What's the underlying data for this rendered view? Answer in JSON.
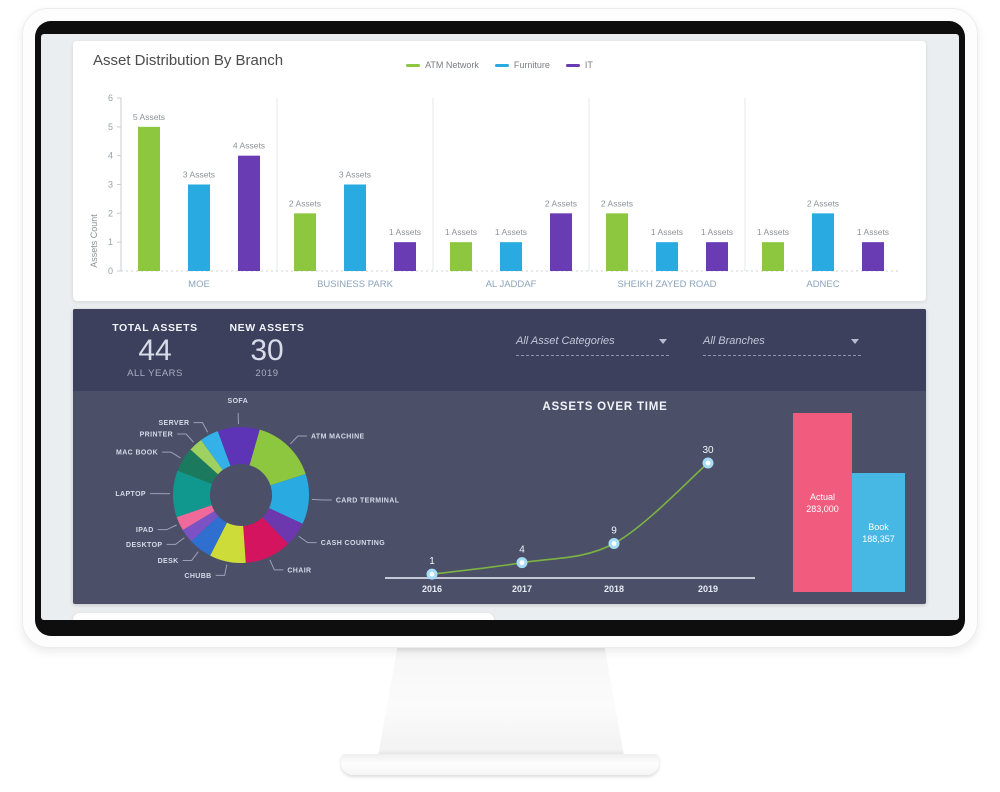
{
  "summary": {
    "total": {
      "label": "TOTAL ASSETS",
      "value": "44",
      "sub": "ALL YEARS"
    },
    "new": {
      "label": "NEW ASSETS",
      "value": "30",
      "sub": "2019"
    }
  },
  "filters": {
    "categories": {
      "value": "All Asset Categories"
    },
    "branches": {
      "value": "All Branches"
    }
  },
  "colors": {
    "panel_dark": "#3c405c",
    "panel_light": "#4b5068",
    "atm_green": "#8dc63f",
    "furniture_blue": "#29abe2",
    "it_purple": "#6a3cb4"
  },
  "chart_data": [
    {
      "id": "branch_bar",
      "type": "bar",
      "title": "Asset Distribution By Branch",
      "ylabel": "Assets Count",
      "ylim": [
        0,
        6
      ],
      "yticks": [
        0,
        1,
        2,
        3,
        4,
        5,
        6
      ],
      "data_label_suffix": " Assets",
      "legend_position": "top-center",
      "categories": [
        "MOE",
        "BUSINESS PARK",
        "AL JADDAF",
        "SHEIKH ZAYED ROAD",
        "ADNEC"
      ],
      "series": [
        {
          "name": "ATM Network",
          "color": "#8dc63f",
          "values": [
            5,
            2,
            1,
            2,
            1
          ]
        },
        {
          "name": "Furniture",
          "color": "#29abe2",
          "values": [
            3,
            3,
            1,
            1,
            2
          ]
        },
        {
          "name": "IT",
          "color": "#6a3cb4",
          "values": [
            4,
            1,
            2,
            1,
            1
          ]
        }
      ]
    },
    {
      "id": "asset_type_donut",
      "type": "pie",
      "value_unit": "degrees",
      "start_angle": 340,
      "segments": [
        {
          "label": "SOFA",
          "value": 36,
          "color": "#5c34b5"
        },
        {
          "label": "ATM MACHINE",
          "value": 56,
          "color": "#8dc63f"
        },
        {
          "label": "CARD TERMINAL",
          "value": 43,
          "color": "#29abe2"
        },
        {
          "label": "CASH COUNTING",
          "value": 21,
          "color": "#6d38ad"
        },
        {
          "label": "CHAIR",
          "value": 40,
          "color": "#d4145e"
        },
        {
          "label": "CHUBB",
          "value": 31,
          "color": "#cddc39"
        },
        {
          "label": "DESK",
          "value": 20,
          "color": "#2e6fd0"
        },
        {
          "label": "DESKTOP",
          "value": 12,
          "color": "#7b52c4"
        },
        {
          "label": "IPAD",
          "value": 12,
          "color": "#ef6a9b"
        },
        {
          "label": "LAPTOP",
          "value": 40,
          "color": "#10988f"
        },
        {
          "label": "MAC BOOK",
          "value": 21,
          "color": "#1b7a5d"
        },
        {
          "label": "PRINTER",
          "value": 12,
          "color": "#9ed15f"
        },
        {
          "label": "SERVER",
          "value": 16,
          "color": "#33b1e8"
        }
      ]
    },
    {
      "id": "assets_over_time",
      "type": "line",
      "title": "ASSETS OVER TIME",
      "x": [
        "2016",
        "2017",
        "2018",
        "2019"
      ],
      "values": [
        1,
        4,
        9,
        30
      ],
      "line_color": "#7cb342",
      "marker_color": "#a6dcf6",
      "axis_color": "#c3cad8"
    },
    {
      "id": "actual_vs_book",
      "type": "bar",
      "bars": [
        {
          "label": "Actual",
          "display": "283,000",
          "value": 283000,
          "color": "#f15b7e",
          "width": 59
        },
        {
          "label": "Book",
          "display": "188,357",
          "value": 188357,
          "color": "#47b7e4",
          "width": 53
        }
      ]
    }
  ]
}
